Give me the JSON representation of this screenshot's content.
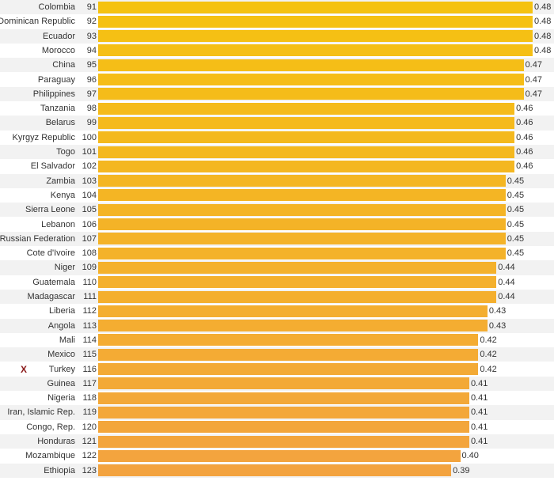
{
  "chart_data": {
    "type": "bar",
    "orientation": "horizontal",
    "xlim": [
      0,
      0.48
    ],
    "grid": false,
    "legend": "none",
    "colors": {
      "high": "#f5c211",
      "low": "#f3a33f",
      "row_alt": "#f2f2f2",
      "marker": "#8b1a1a"
    },
    "highlight": {
      "country": "Turkey",
      "marker": "X"
    },
    "rows": [
      {
        "country": "Colombia",
        "rank": "91",
        "value": 0.48,
        "label": "0.48"
      },
      {
        "country": "Dominican Republic",
        "rank": "92",
        "value": 0.48,
        "label": "0.48"
      },
      {
        "country": "Ecuador",
        "rank": "93",
        "value": 0.48,
        "label": "0.48"
      },
      {
        "country": "Morocco",
        "rank": "94",
        "value": 0.48,
        "label": "0.48"
      },
      {
        "country": "China",
        "rank": "95",
        "value": 0.47,
        "label": "0.47"
      },
      {
        "country": "Paraguay",
        "rank": "96",
        "value": 0.47,
        "label": "0.47"
      },
      {
        "country": "Philippines",
        "rank": "97",
        "value": 0.47,
        "label": "0.47"
      },
      {
        "country": "Tanzania",
        "rank": "98",
        "value": 0.46,
        "label": "0.46"
      },
      {
        "country": "Belarus",
        "rank": "99",
        "value": 0.46,
        "label": "0.46"
      },
      {
        "country": "Kyrgyz Republic",
        "rank": "100",
        "value": 0.46,
        "label": "0.46"
      },
      {
        "country": "Togo",
        "rank": "101",
        "value": 0.46,
        "label": "0.46"
      },
      {
        "country": "El Salvador",
        "rank": "102",
        "value": 0.46,
        "label": "0.46"
      },
      {
        "country": "Zambia",
        "rank": "103",
        "value": 0.45,
        "label": "0.45"
      },
      {
        "country": "Kenya",
        "rank": "104",
        "value": 0.45,
        "label": "0.45"
      },
      {
        "country": "Sierra Leone",
        "rank": "105",
        "value": 0.45,
        "label": "0.45"
      },
      {
        "country": "Lebanon",
        "rank": "106",
        "value": 0.45,
        "label": "0.45"
      },
      {
        "country": "Russian Federation",
        "rank": "107",
        "value": 0.45,
        "label": "0.45"
      },
      {
        "country": "Cote d'Ivoire",
        "rank": "108",
        "value": 0.45,
        "label": "0.45"
      },
      {
        "country": "Niger",
        "rank": "109",
        "value": 0.44,
        "label": "0.44"
      },
      {
        "country": "Guatemala",
        "rank": "110",
        "value": 0.44,
        "label": "0.44"
      },
      {
        "country": "Madagascar",
        "rank": "111",
        "value": 0.44,
        "label": "0.44"
      },
      {
        "country": "Liberia",
        "rank": "112",
        "value": 0.43,
        "label": "0.43"
      },
      {
        "country": "Angola",
        "rank": "113",
        "value": 0.43,
        "label": "0.43"
      },
      {
        "country": "Mali",
        "rank": "114",
        "value": 0.42,
        "label": "0.42"
      },
      {
        "country": "Mexico",
        "rank": "115",
        "value": 0.42,
        "label": "0.42"
      },
      {
        "country": "Turkey",
        "rank": "116",
        "value": 0.42,
        "label": "0.42"
      },
      {
        "country": "Guinea",
        "rank": "117",
        "value": 0.41,
        "label": "0.41"
      },
      {
        "country": "Nigeria",
        "rank": "118",
        "value": 0.41,
        "label": "0.41"
      },
      {
        "country": "Iran, Islamic Rep.",
        "rank": "119",
        "value": 0.41,
        "label": "0.41"
      },
      {
        "country": "Congo, Rep.",
        "rank": "120",
        "value": 0.41,
        "label": "0.41"
      },
      {
        "country": "Honduras",
        "rank": "121",
        "value": 0.41,
        "label": "0.41"
      },
      {
        "country": "Mozambique",
        "rank": "122",
        "value": 0.4,
        "label": "0.40"
      },
      {
        "country": "Ethiopia",
        "rank": "123",
        "value": 0.39,
        "label": "0.39"
      }
    ]
  }
}
